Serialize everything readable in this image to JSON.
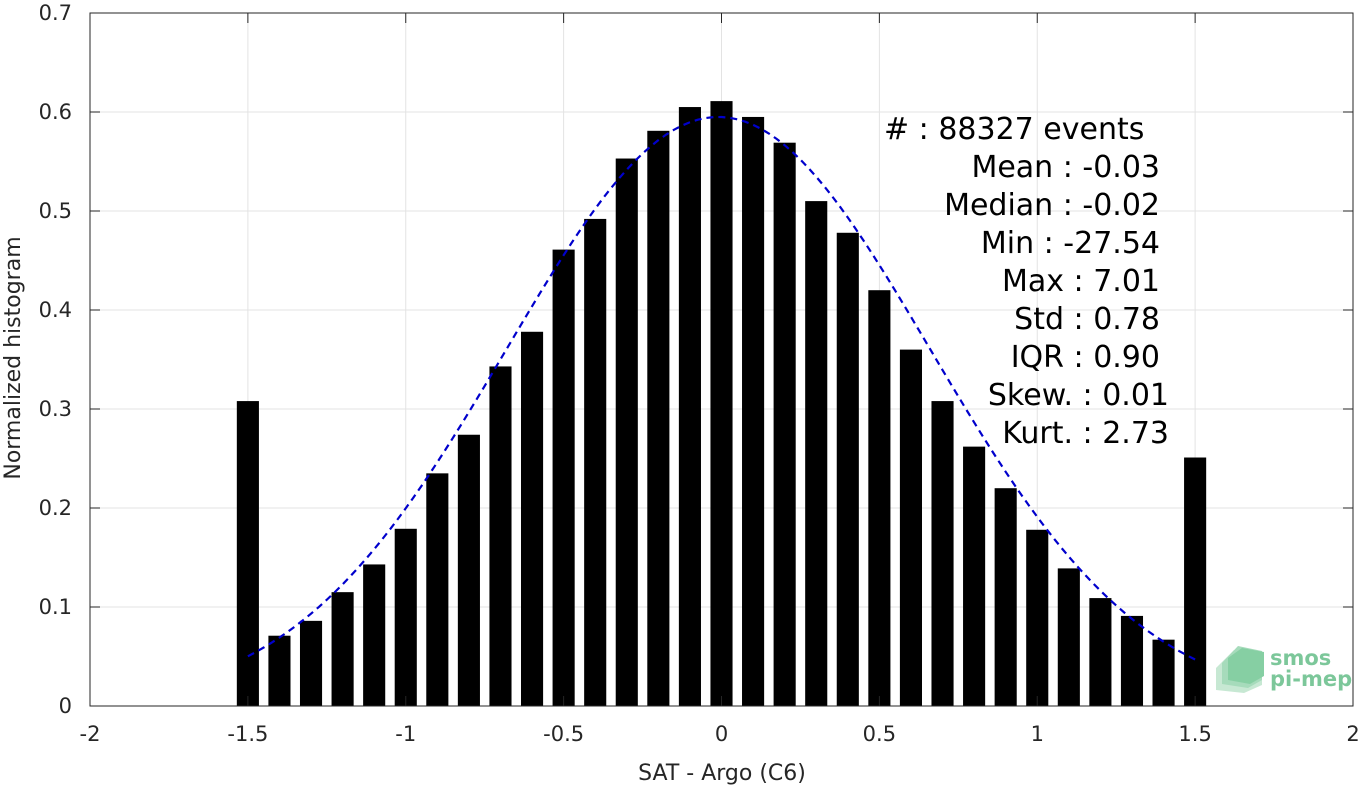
{
  "chart_data": {
    "type": "bar",
    "xlabel": "SAT - Argo (C6)",
    "ylabel": "Normalized histogram",
    "xlim": [
      -2,
      2
    ],
    "ylim": [
      0,
      0.7
    ],
    "x_ticks": [
      -2,
      -1.5,
      -1,
      -0.5,
      0,
      0.5,
      1,
      1.5,
      2
    ],
    "x_tick_labels": [
      "-2",
      "-1.5",
      "-1",
      "-0.5",
      "0",
      "0.5",
      "1",
      "1.5",
      "2"
    ],
    "y_ticks": [
      0,
      0.1,
      0.2,
      0.3,
      0.4,
      0.5,
      0.6,
      0.7
    ],
    "y_tick_labels": [
      "0",
      "0.1",
      "0.2",
      "0.3",
      "0.4",
      "0.5",
      "0.6",
      "0.7"
    ],
    "grid": true,
    "bar_color": "#000000",
    "fit_color": "#0000cc",
    "bar_width": 0.07,
    "bins": {
      "x": [
        -1.5,
        -1.4,
        -1.3,
        -1.2,
        -1.1,
        -1.0,
        -0.9,
        -0.8,
        -0.7,
        -0.6,
        -0.5,
        -0.4,
        -0.3,
        -0.2,
        -0.1,
        0.0,
        0.1,
        0.2,
        0.3,
        0.4,
        0.5,
        0.6,
        0.7,
        0.8,
        0.9,
        1.0,
        1.1,
        1.2,
        1.3,
        1.4,
        1.5
      ],
      "values": [
        0.308,
        0.071,
        0.086,
        0.115,
        0.143,
        0.179,
        0.235,
        0.274,
        0.343,
        0.378,
        0.461,
        0.492,
        0.553,
        0.581,
        0.605,
        0.611,
        0.595,
        0.569,
        0.51,
        0.478,
        0.42,
        0.36,
        0.308,
        0.262,
        0.22,
        0.178,
        0.139,
        0.109,
        0.091,
        0.067,
        0.251
      ]
    },
    "fit": {
      "style": "dashed",
      "x_range": [
        -1.5,
        1.5
      ],
      "mean": -0.01,
      "std": 0.67,
      "peak": 0.595
    },
    "annotations": [
      "#  : 88327 events",
      "Mean : -0.03",
      "Median : -0.02",
      "Min : -27.54",
      "Max : 7.01",
      "Std : 0.78",
      "IQR : 0.90",
      "Skew. : 0.01",
      "Kurt. : 2.73"
    ]
  },
  "logo": {
    "text_line1": "smos",
    "text_line2": "pi-mep",
    "color": "#7cc79a"
  }
}
